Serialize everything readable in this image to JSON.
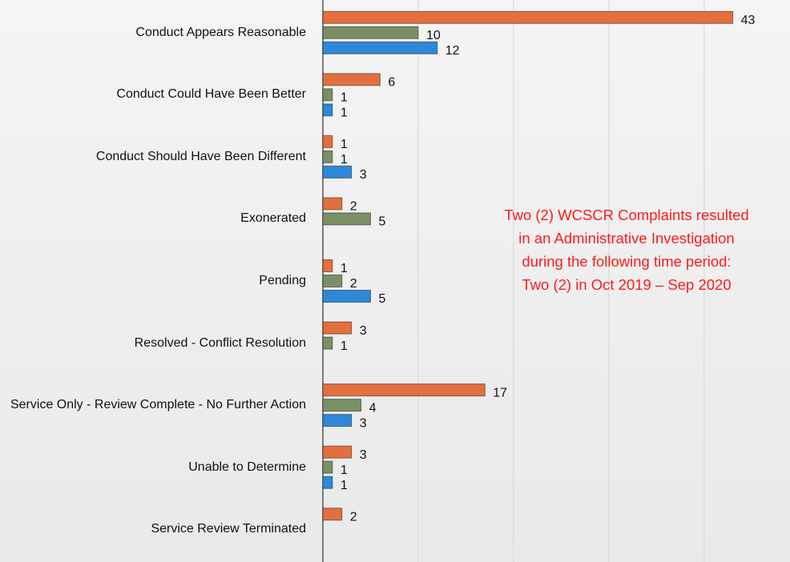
{
  "chart_data": {
    "type": "bar",
    "orientation": "horizontal",
    "categories": [
      "Conduct Appears Reasonable",
      "Conduct Could Have Been Better",
      "Conduct Should Have Been Different",
      "Exonerated",
      "Pending",
      "Resolved - Conflict Resolution",
      "Service Only - Review Complete - No Further Action",
      "Unable to Determine",
      "Service Review Terminated"
    ],
    "series": [
      {
        "color": "#e2703f",
        "values": [
          43,
          6,
          1,
          2,
          1,
          3,
          17,
          3,
          2
        ]
      },
      {
        "color": "#7b8f64",
        "values": [
          10,
          1,
          1,
          5,
          2,
          1,
          4,
          1,
          null
        ]
      },
      {
        "color": "#2e88d8",
        "values": [
          12,
          1,
          3,
          null,
          5,
          null,
          3,
          1,
          null
        ]
      }
    ],
    "xlim": [
      0,
      49
    ],
    "xticks": [
      0,
      10,
      20,
      30,
      40
    ],
    "grid": true,
    "annotation": [
      "Two (2) WCSCR Complaints resulted",
      "in an Administrative Investigation",
      "during the following time period:",
      "Two (2) in Oct 2019 – Sep 2020"
    ]
  }
}
